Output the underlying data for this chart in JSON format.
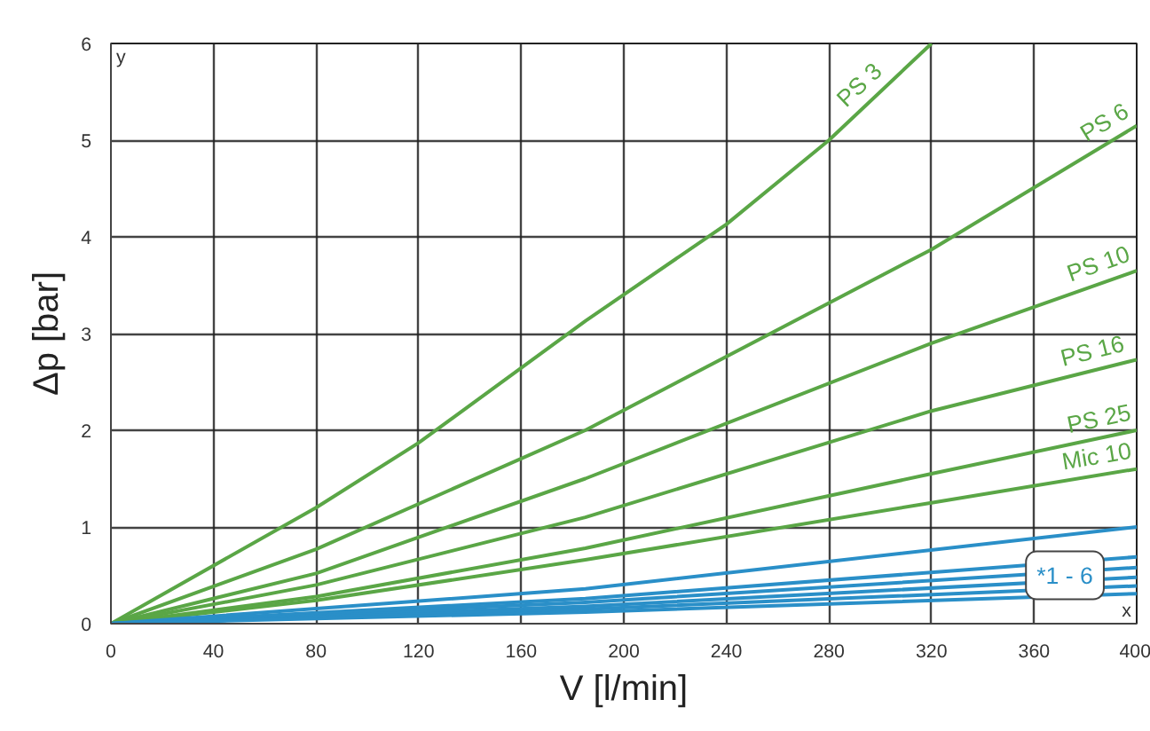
{
  "chart_data": {
    "type": "line",
    "xlabel": "V [l/min]",
    "ylabel": "Δp [bar]",
    "xlim": [
      0,
      400
    ],
    "ylim": [
      0,
      6
    ],
    "xticks": [
      0,
      40,
      80,
      120,
      160,
      200,
      240,
      280,
      320,
      360,
      400
    ],
    "yticks": [
      0,
      1,
      2,
      3,
      4,
      5,
      6
    ],
    "grid": true,
    "marker": "none",
    "line_style": "solid",
    "series": [
      {
        "name": "PS 3",
        "color": "#5aa646",
        "x": [
          0,
          80,
          120,
          185,
          240,
          280,
          320
        ],
        "values": [
          0,
          1.2,
          1.87,
          3.13,
          4.13,
          5.0,
          6.0
        ]
      },
      {
        "name": "PS 6",
        "color": "#5aa646",
        "x": [
          0,
          80,
          185,
          320,
          400
        ],
        "values": [
          0,
          0.77,
          2.0,
          3.87,
          5.15
        ]
      },
      {
        "name": "PS 10",
        "color": "#5aa646",
        "x": [
          0,
          80,
          185,
          320,
          400
        ],
        "values": [
          0,
          0.52,
          1.5,
          2.9,
          3.65
        ]
      },
      {
        "name": "PS  16",
        "color": "#5aa646",
        "x": [
          0,
          80,
          185,
          320,
          400
        ],
        "values": [
          0,
          0.4,
          1.1,
          2.2,
          2.73
        ]
      },
      {
        "name": "PS 25",
        "color": "#5aa646",
        "x": [
          0,
          80,
          185,
          320,
          400
        ],
        "values": [
          0,
          0.28,
          0.78,
          1.55,
          2.0
        ]
      },
      {
        "name": "Mic 10",
        "color": "#5aa646",
        "x": [
          0,
          80,
          185,
          320,
          400
        ],
        "values": [
          0,
          0.24,
          0.66,
          1.25,
          1.6
        ]
      },
      {
        "color": "#2a8fc8",
        "x": [
          0,
          185,
          400
        ],
        "values": [
          0,
          0.36,
          1.0
        ]
      },
      {
        "color": "#2a8fc8",
        "x": [
          0,
          185,
          400
        ],
        "values": [
          0,
          0.26,
          0.69
        ]
      },
      {
        "color": "#2a8fc8",
        "x": [
          0,
          185,
          400
        ],
        "values": [
          0,
          0.22,
          0.58
        ]
      },
      {
        "color": "#2a8fc8",
        "x": [
          0,
          185,
          400
        ],
        "values": [
          0,
          0.18,
          0.48
        ]
      },
      {
        "color": "#2a8fc8",
        "x": [
          0,
          185,
          400
        ],
        "values": [
          0,
          0.15,
          0.39
        ]
      },
      {
        "color": "#2a8fc8",
        "x": [
          0,
          185,
          400
        ],
        "values": [
          0,
          0.12,
          0.31
        ]
      }
    ],
    "annotations": [
      {
        "text": "*1 - 6",
        "x": 372,
        "y": 0.5
      },
      "y",
      "x"
    ]
  }
}
